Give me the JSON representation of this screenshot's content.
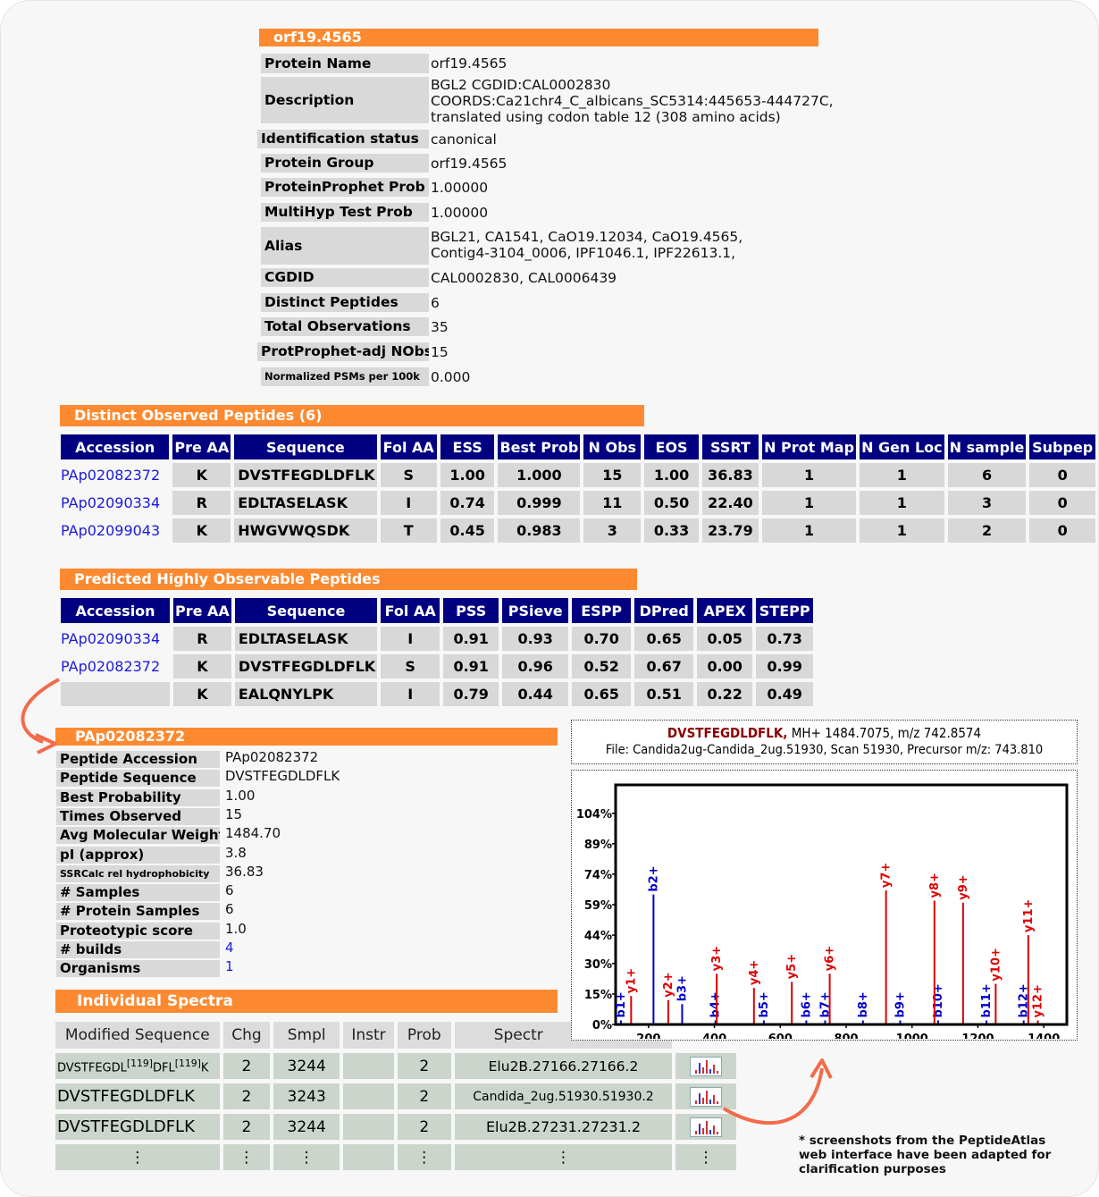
{
  "protein": {
    "header": "orf19.4565",
    "rows": [
      {
        "label": "Protein Name",
        "value": "orf19.4565"
      },
      {
        "label": "Description",
        "lines": [
          "BGL2 CGDID:CAL0002830",
          "COORDS:Ca21chr4_C_albicans_SC5314:445653-444727C,",
          "translated using codon table 12 (308 amino acids)"
        ]
      },
      {
        "label": "Identification status",
        "value": "canonical"
      },
      {
        "label": "Protein Group",
        "value": "orf19.4565"
      },
      {
        "label": "ProteinProphet Prob",
        "value": "1.00000"
      },
      {
        "label": "MultiHyp Test Prob",
        "value": "1.00000"
      },
      {
        "label": "Alias",
        "lines": [
          "BGL21, CA1541, CaO19.12034, CaO19.4565,",
          "Contig4-3104_0006, IPF1046.1, IPF22613.1,"
        ]
      },
      {
        "label": "CGDID",
        "value": "CAL0002830, CAL0006439"
      },
      {
        "label": "Distinct Peptides",
        "value": "6"
      },
      {
        "label": "Total Observations",
        "value": "35"
      },
      {
        "label": "ProtProphet-adj NObs",
        "value": "15"
      },
      {
        "label": "Normalized PSMs per 100k",
        "value": "0.000"
      }
    ]
  },
  "distinct": {
    "header": "Distinct Observed Peptides (6)",
    "columns": [
      "Accession",
      "Pre AA",
      "Sequence",
      "Fol AA",
      "ESS",
      "Best Prob",
      "N Obs",
      "EOS",
      "SSRT",
      "N Prot Map",
      "N Gen Loc",
      "N sample",
      "Subpep"
    ],
    "rows": [
      [
        "PAp02082372",
        "K",
        "DVSTFEGDLDFLK",
        "S",
        "1.00",
        "1.000",
        "15",
        "1.00",
        "36.83",
        "1",
        "1",
        "6",
        "0"
      ],
      [
        "PAp02090334",
        "R",
        "EDLTASELASK",
        "I",
        "0.74",
        "0.999",
        "11",
        "0.50",
        "22.40",
        "1",
        "1",
        "3",
        "0"
      ],
      [
        "PAp02099043",
        "K",
        "HWGVWQSDK",
        "T",
        "0.45",
        "0.983",
        "3",
        "0.33",
        "23.79",
        "1",
        "1",
        "2",
        "0"
      ]
    ]
  },
  "predicted": {
    "header": "Predicted Highly Observable Peptides",
    "columns": [
      "Accession",
      "Pre AA",
      "Sequence",
      "Fol AA",
      "PSS",
      "PSieve",
      "ESPP",
      "DPred",
      "APEX",
      "STEPP"
    ],
    "rows": [
      [
        "PAp02090334",
        "R",
        "EDLTASELASK",
        "I",
        "0.91",
        "0.93",
        "0.70",
        "0.65",
        "0.05",
        "0.73"
      ],
      [
        "PAp02082372",
        "K",
        "DVSTFEGDLDFLK",
        "S",
        "0.91",
        "0.96",
        "0.52",
        "0.67",
        "0.00",
        "0.99"
      ],
      [
        "",
        "K",
        "EALQNYLPK",
        "I",
        "0.79",
        "0.44",
        "0.65",
        "0.51",
        "0.22",
        "0.49"
      ]
    ]
  },
  "peptide": {
    "header": "PAp02082372",
    "rows": [
      {
        "label": "Peptide Accession",
        "value": "PAp02082372"
      },
      {
        "label": "Peptide Sequence",
        "value": "DVSTFEGDLDFLK"
      },
      {
        "label": "Best Probability",
        "value": "1.00"
      },
      {
        "label": "Times Observed",
        "value": "15"
      },
      {
        "label": "Avg Molecular Weight",
        "value": "1484.70"
      },
      {
        "label": "pI (approx)",
        "value": "3.8"
      },
      {
        "label": "SSRCalc rel hydrophobicity",
        "value": "36.83"
      },
      {
        "label": "# Samples",
        "value": "6"
      },
      {
        "label": "# Protein Samples",
        "value": "6"
      },
      {
        "label": "Proteotypic score",
        "value": "1.0"
      },
      {
        "label": "# builds",
        "value": "4"
      },
      {
        "label": "Organisms",
        "value": "1"
      }
    ]
  },
  "spectra": {
    "header": "Individual Spectra",
    "columns": [
      "Modified Sequence",
      "Chg",
      "Smpl",
      "Instr",
      "Prob",
      "Spectr"
    ],
    "row1": {
      "seq_a": "DVSTFEGDL",
      "sup_a": "[119]",
      "seq_b": "DFL",
      "sup_b": "[119]",
      "seq_c": "K",
      "chg": "2",
      "smpl": "3244",
      "instr": "",
      "prob": "2",
      "spectrum": "Elu2B.27166.27166.2"
    },
    "rows": [
      [
        "DVSTFEGDLDFLK",
        "2",
        "3243",
        "",
        "2",
        "Candida_2ug.51930.51930.2"
      ],
      [
        "DVSTFEGDLDFLK",
        "2",
        "3244",
        "",
        "2",
        "Elu2B.27231.27231.2"
      ]
    ],
    "ellipsis": "⋮"
  },
  "spectrum_view": {
    "peptide": "DVSTFEGDLDFLK,",
    "info": " MH+ 1484.7075, m/z 742.8574",
    "file": "File: Candida2ug-Candida_2ug.51930, Scan 51930, Precursor m/z: 743.810"
  },
  "chart_data": {
    "type": "bar",
    "title": "",
    "xlabel": "",
    "ylabel": "",
    "xlim": [
      100,
      1470
    ],
    "ylim": [
      0,
      118
    ],
    "xticks": [
      200,
      400,
      600,
      800,
      1000,
      1200,
      1400
    ],
    "yticks": [
      0,
      15,
      30,
      44,
      59,
      74,
      89,
      104
    ],
    "ytick_labels": [
      "0%",
      "15%",
      "30%",
      "44%",
      "59%",
      "74%",
      "89%",
      "104%"
    ],
    "series": [
      {
        "name": "b",
        "color": "#0000cc",
        "peaks": [
          {
            "label": "b1+",
            "mz": 116,
            "intensity": 2
          },
          {
            "label": "b2+",
            "mz": 215,
            "intensity": 64
          },
          {
            "label": "b3+",
            "mz": 302,
            "intensity": 10
          },
          {
            "label": "b4+",
            "mz": 403,
            "intensity": 2
          },
          {
            "label": "b5+",
            "mz": 550,
            "intensity": 2
          },
          {
            "label": "b6+",
            "mz": 679,
            "intensity": 2
          },
          {
            "label": "b7+",
            "mz": 736,
            "intensity": 2
          },
          {
            "label": "b8+",
            "mz": 851,
            "intensity": 2
          },
          {
            "label": "b9+",
            "mz": 964,
            "intensity": 2
          },
          {
            "label": "b10+",
            "mz": 1079,
            "intensity": 2
          },
          {
            "label": "b11+",
            "mz": 1226,
            "intensity": 2
          },
          {
            "label": "b12+",
            "mz": 1339,
            "intensity": 2
          }
        ]
      },
      {
        "name": "y",
        "color": "#dd0000",
        "peaks": [
          {
            "label": "y1+",
            "mz": 147,
            "intensity": 14
          },
          {
            "label": "y2+",
            "mz": 260,
            "intensity": 12
          },
          {
            "label": "y3+",
            "mz": 407,
            "intensity": 25
          },
          {
            "label": "y4+",
            "mz": 520,
            "intensity": 18
          },
          {
            "label": "y5+",
            "mz": 635,
            "intensity": 21
          },
          {
            "label": "y6+",
            "mz": 750,
            "intensity": 25
          },
          {
            "label": "y7+",
            "mz": 921,
            "intensity": 66
          },
          {
            "label": "y8+",
            "mz": 1068,
            "intensity": 61
          },
          {
            "label": "y9+",
            "mz": 1155,
            "intensity": 60
          },
          {
            "label": "y10+",
            "mz": 1254,
            "intensity": 20
          },
          {
            "label": "y11+",
            "mz": 1353,
            "intensity": 44
          },
          {
            "label": "y12+",
            "mz": 1382,
            "intensity": 2
          }
        ]
      }
    ]
  },
  "note": {
    "lines": [
      "* screenshots from the PeptideAtlas",
      "web interface have been adapted for",
      "clarification purposes"
    ]
  },
  "colors": {
    "orange": "#fd8a30",
    "navy": "#000080",
    "link": "#1a1adc",
    "arrow": "#f26b4a"
  }
}
